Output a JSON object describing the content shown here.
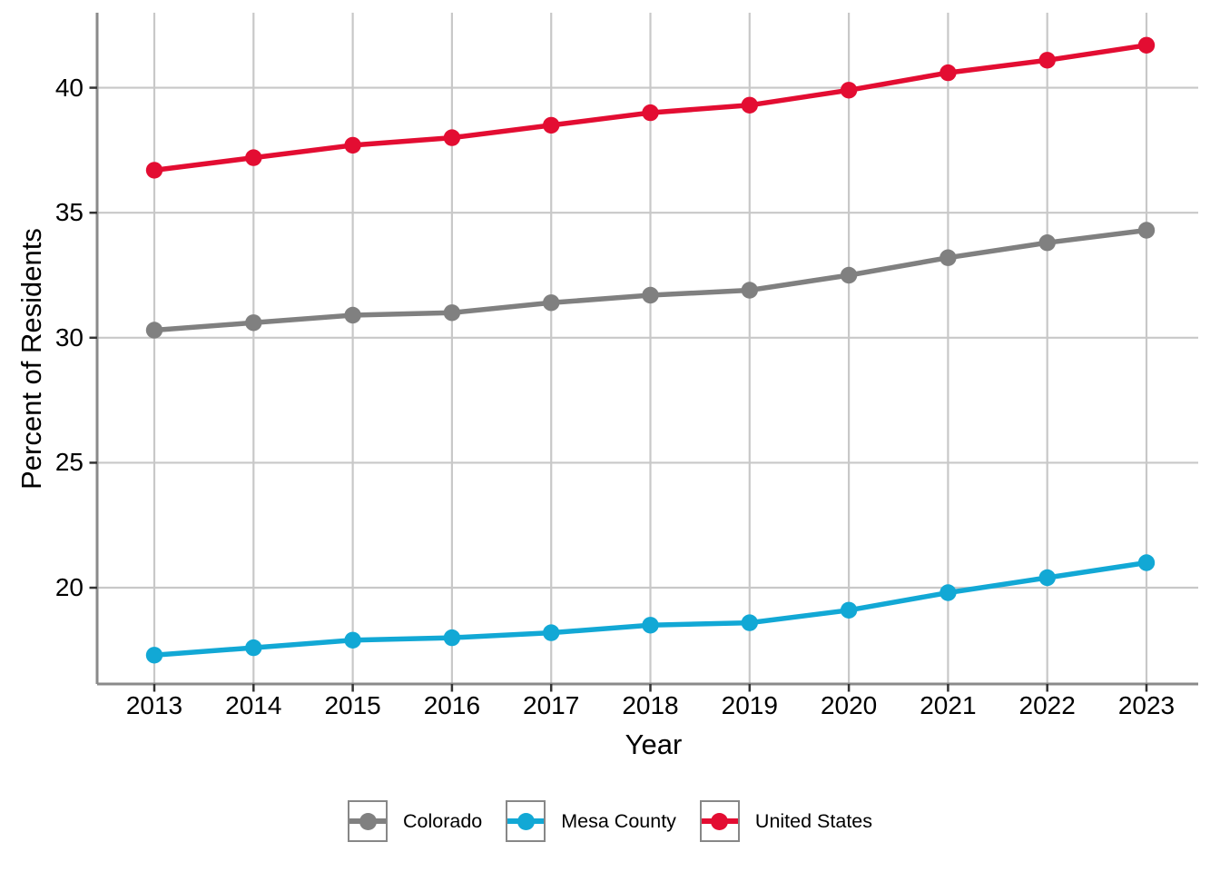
{
  "chart_data": {
    "type": "line",
    "title": "",
    "xlabel": "Year",
    "ylabel": "Percent of Residents",
    "x": [
      "2013",
      "2014",
      "2015",
      "2016",
      "2017",
      "2018",
      "2019",
      "2020",
      "2021",
      "2022",
      "2023"
    ],
    "series": [
      {
        "name": "Colorado",
        "color": "#808080",
        "values": [
          30.3,
          30.6,
          30.9,
          31.0,
          31.4,
          31.7,
          31.9,
          32.5,
          33.2,
          33.8,
          34.3
        ]
      },
      {
        "name": "Mesa County",
        "color": "#12A8D5",
        "values": [
          17.3,
          17.6,
          17.9,
          18.0,
          18.2,
          18.5,
          18.6,
          19.1,
          19.8,
          20.4,
          21.0
        ]
      },
      {
        "name": "United States",
        "color": "#E30D32",
        "values": [
          36.7,
          37.2,
          37.7,
          38.0,
          38.5,
          39.0,
          39.3,
          39.9,
          40.6,
          41.1,
          41.7
        ]
      }
    ],
    "y_ticks": [
      "20",
      "25",
      "30",
      "35",
      "40"
    ],
    "y_tick_values": [
      20,
      25,
      30,
      35,
      40
    ],
    "ylim": [
      16.15,
      43.0
    ],
    "grid": "major-only",
    "legend_position": "bottom",
    "colors": {
      "gridline": "#C8C8C8",
      "axis_line": "#8A8A8A",
      "tick_mark": "#333333",
      "text": "#000000",
      "background": "#FFFFFF"
    }
  }
}
